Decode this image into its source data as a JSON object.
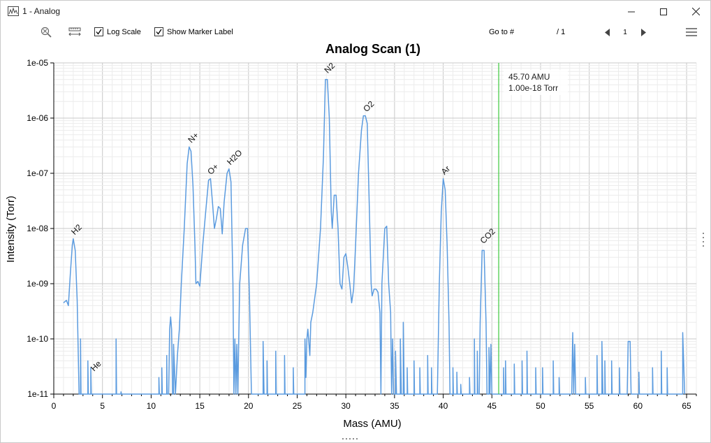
{
  "window": {
    "title": "1 - Analog"
  },
  "toolbar": {
    "zoom_icon": "zoom-reset-icon",
    "ruler_icon": "ruler-icon",
    "log_scale": {
      "label": "Log Scale",
      "checked": true
    },
    "show_marker": {
      "label": "Show Marker Label",
      "checked": true
    },
    "goto_label": "Go to #",
    "goto_value": "",
    "goto_total": "/ 1",
    "page_value": "1"
  },
  "chart_data": {
    "type": "line",
    "title": "Analog Scan (1)",
    "xlabel": "Mass (AMU)",
    "ylabel": "Intensity (Torr)",
    "xlim": [
      0,
      66
    ],
    "ylim": [
      1e-11,
      1e-05
    ],
    "yscale": "log",
    "grid": true,
    "x_ticks": [
      "0",
      "5",
      "10",
      "15",
      "20",
      "25",
      "30",
      "35",
      "40",
      "45",
      "50",
      "55",
      "60",
      "65"
    ],
    "y_ticks": [
      "1e-05",
      "1e-06",
      "1e-07",
      "1e-08",
      "1e-09",
      "1e-10",
      "1e-11"
    ],
    "line_color": "#5b9bdf",
    "marker_color": "#3cc83c",
    "series": [
      {
        "points": [
          [
            1.0,
            4.5e-10
          ],
          [
            1.3,
            5e-10
          ],
          [
            1.5,
            4e-10
          ],
          [
            1.7,
            1.5e-09
          ],
          [
            1.9,
            5e-09
          ],
          [
            2.0,
            6.5e-09
          ],
          [
            2.2,
            4e-09
          ],
          [
            2.4,
            5e-10
          ],
          [
            2.6,
            1e-11
          ],
          [
            2.75,
            1e-11
          ],
          [
            2.75,
            1e-10
          ],
          [
            2.8,
            1e-11
          ],
          [
            3.5,
            1e-11
          ],
          [
            3.5,
            4e-11
          ],
          [
            3.55,
            1e-11
          ],
          [
            3.8,
            1e-11
          ],
          [
            3.8,
            3e-11
          ],
          [
            3.85,
            1e-11
          ],
          [
            6.4,
            1e-11
          ],
          [
            6.4,
            1e-10
          ],
          [
            6.45,
            1e-11
          ],
          [
            6.9,
            1e-11
          ],
          [
            6.9,
            1.1e-11
          ],
          [
            6.95,
            1e-11
          ],
          [
            10.8,
            1e-11
          ],
          [
            10.8,
            2e-11
          ],
          [
            10.85,
            1e-11
          ],
          [
            11.1,
            1e-11
          ],
          [
            11.1,
            3e-11
          ],
          [
            11.15,
            1e-11
          ],
          [
            11.6,
            1e-11
          ],
          [
            11.6,
            5e-11
          ],
          [
            11.65,
            1e-11
          ],
          [
            11.8,
            1e-11
          ],
          [
            11.9,
            1.5e-10
          ],
          [
            12.0,
            2.5e-10
          ],
          [
            12.1,
            1.5e-10
          ],
          [
            12.2,
            1e-11
          ],
          [
            12.3,
            1e-11
          ],
          [
            12.3,
            8e-11
          ],
          [
            12.4,
            3e-11
          ],
          [
            12.5,
            1e-11
          ],
          [
            12.7,
            5e-11
          ],
          [
            12.9,
            1.5e-10
          ],
          [
            13.1,
            1e-09
          ],
          [
            13.4,
            1e-08
          ],
          [
            13.7,
            1.5e-07
          ],
          [
            13.9,
            3e-07
          ],
          [
            14.1,
            2.5e-07
          ],
          [
            14.3,
            6e-08
          ],
          [
            14.5,
            5e-09
          ],
          [
            14.6,
            1e-09
          ],
          [
            14.8,
            1.1e-09
          ],
          [
            15.0,
            9e-10
          ],
          [
            15.3,
            5e-09
          ],
          [
            15.6,
            2e-08
          ],
          [
            15.9,
            7.5e-08
          ],
          [
            16.1,
            8e-08
          ],
          [
            16.3,
            3e-08
          ],
          [
            16.5,
            1e-08
          ],
          [
            16.7,
            1.5e-08
          ],
          [
            16.9,
            2.5e-08
          ],
          [
            17.1,
            2.3e-08
          ],
          [
            17.3,
            8e-09
          ],
          [
            17.5,
            3e-08
          ],
          [
            17.8,
            1e-07
          ],
          [
            18.0,
            1.2e-07
          ],
          [
            18.2,
            7e-08
          ],
          [
            18.4,
            1e-09
          ],
          [
            18.5,
            1e-11
          ],
          [
            18.6,
            1e-10
          ],
          [
            18.7,
            1e-11
          ],
          [
            18.8,
            8e-11
          ],
          [
            18.9,
            1e-11
          ],
          [
            19.1,
            1e-09
          ],
          [
            19.4,
            5e-09
          ],
          [
            19.7,
            1e-08
          ],
          [
            19.9,
            1e-08
          ],
          [
            20.1,
            6e-10
          ],
          [
            20.3,
            1e-11
          ],
          [
            21.5,
            1e-11
          ],
          [
            21.5,
            9e-11
          ],
          [
            21.6,
            1e-11
          ],
          [
            21.9,
            1e-11
          ],
          [
            21.9,
            4e-11
          ],
          [
            21.95,
            1e-11
          ],
          [
            22.8,
            1e-11
          ],
          [
            22.8,
            6e-11
          ],
          [
            22.85,
            1e-11
          ],
          [
            23.7,
            1e-11
          ],
          [
            23.7,
            5e-11
          ],
          [
            23.75,
            1e-11
          ],
          [
            24.6,
            1e-11
          ],
          [
            24.6,
            3e-11
          ],
          [
            24.65,
            1e-11
          ],
          [
            25.8,
            1e-11
          ],
          [
            25.8,
            1e-10
          ],
          [
            25.9,
            2e-11
          ],
          [
            26.0,
            1e-10
          ],
          [
            26.1,
            1.5e-10
          ],
          [
            26.3,
            5e-11
          ],
          [
            26.4,
            2e-10
          ],
          [
            26.6,
            3e-10
          ],
          [
            27.0,
            1e-09
          ],
          [
            27.4,
            1e-08
          ],
          [
            27.7,
            2e-07
          ],
          [
            27.9,
            5e-06
          ],
          [
            28.1,
            5e-06
          ],
          [
            28.3,
            1e-06
          ],
          [
            28.5,
            2e-08
          ],
          [
            28.6,
            1e-08
          ],
          [
            28.8,
            4e-08
          ],
          [
            29.0,
            4e-08
          ],
          [
            29.2,
            1e-08
          ],
          [
            29.4,
            1e-09
          ],
          [
            29.6,
            8e-10
          ],
          [
            29.8,
            3e-09
          ],
          [
            30.0,
            3.5e-09
          ],
          [
            30.2,
            2e-09
          ],
          [
            30.4,
            1e-09
          ],
          [
            30.6,
            4.5e-10
          ],
          [
            30.8,
            8e-10
          ],
          [
            31.0,
            5e-09
          ],
          [
            31.3,
            1e-07
          ],
          [
            31.6,
            6e-07
          ],
          [
            31.8,
            1.1e-06
          ],
          [
            32.0,
            1.1e-06
          ],
          [
            32.2,
            8e-07
          ],
          [
            32.4,
            3e-08
          ],
          [
            32.6,
            1e-09
          ],
          [
            32.7,
            6e-10
          ],
          [
            32.9,
            8e-10
          ],
          [
            33.1,
            8e-10
          ],
          [
            33.3,
            7e-10
          ],
          [
            33.5,
            3e-10
          ],
          [
            33.6,
            1e-11
          ],
          [
            33.7,
            1e-09
          ],
          [
            34.0,
            1e-08
          ],
          [
            34.2,
            1.1e-08
          ],
          [
            34.4,
            1e-09
          ],
          [
            34.6,
            3e-10
          ],
          [
            34.7,
            1e-11
          ],
          [
            34.8,
            1e-10
          ],
          [
            34.9,
            1e-11
          ],
          [
            35.1,
            1e-11
          ],
          [
            35.1,
            6e-11
          ],
          [
            35.2,
            1e-11
          ],
          [
            35.6,
            1e-11
          ],
          [
            35.6,
            1e-10
          ],
          [
            35.7,
            1e-11
          ],
          [
            35.9,
            1e-11
          ],
          [
            35.9,
            2e-10
          ],
          [
            36.0,
            1e-11
          ],
          [
            36.3,
            1e-11
          ],
          [
            36.3,
            3e-11
          ],
          [
            36.35,
            1e-11
          ],
          [
            37.0,
            1e-11
          ],
          [
            37.0,
            4e-11
          ],
          [
            37.05,
            1e-11
          ],
          [
            37.6,
            1e-11
          ],
          [
            37.6,
            3e-11
          ],
          [
            37.65,
            1e-11
          ],
          [
            38.4,
            1e-11
          ],
          [
            38.4,
            5e-11
          ],
          [
            38.45,
            1e-11
          ],
          [
            38.8,
            1e-11
          ],
          [
            38.8,
            3e-11
          ],
          [
            38.85,
            1e-11
          ],
          [
            39.4,
            1e-11
          ],
          [
            39.6,
            1e-09
          ],
          [
            39.8,
            2e-08
          ],
          [
            40.0,
            8e-08
          ],
          [
            40.2,
            5e-08
          ],
          [
            40.4,
            5e-09
          ],
          [
            40.6,
            2e-10
          ],
          [
            40.7,
            1e-11
          ],
          [
            41.0,
            1e-11
          ],
          [
            41.0,
            3e-11
          ],
          [
            41.05,
            1e-11
          ],
          [
            41.4,
            1e-11
          ],
          [
            41.4,
            2.5e-11
          ],
          [
            41.45,
            1e-11
          ],
          [
            41.8,
            1e-11
          ],
          [
            41.8,
            1.5e-11
          ],
          [
            41.85,
            1e-11
          ],
          [
            42.7,
            1e-11
          ],
          [
            42.7,
            2e-11
          ],
          [
            42.75,
            1e-11
          ],
          [
            43.2,
            1e-11
          ],
          [
            43.2,
            1e-10
          ],
          [
            43.25,
            1e-11
          ],
          [
            43.5,
            1e-11
          ],
          [
            43.5,
            6e-11
          ],
          [
            43.55,
            1e-11
          ],
          [
            43.7,
            1e-11
          ],
          [
            43.8,
            2e-10
          ],
          [
            44.0,
            4e-09
          ],
          [
            44.2,
            4e-09
          ],
          [
            44.4,
            2e-10
          ],
          [
            44.5,
            1e-11
          ],
          [
            44.7,
            1e-11
          ],
          [
            44.7,
            7e-11
          ],
          [
            44.8,
            1e-11
          ],
          [
            44.9,
            8e-11
          ],
          [
            45.0,
            1e-11
          ],
          [
            46.2,
            1e-11
          ],
          [
            46.2,
            3e-11
          ],
          [
            46.25,
            1e-11
          ],
          [
            46.4,
            1e-11
          ],
          [
            46.4,
            4e-11
          ],
          [
            46.45,
            1e-11
          ],
          [
            47.3,
            1e-11
          ],
          [
            47.3,
            3.5e-11
          ],
          [
            47.35,
            1e-11
          ],
          [
            48.1,
            1e-11
          ],
          [
            48.1,
            4e-11
          ],
          [
            48.15,
            1e-11
          ],
          [
            48.6,
            1e-11
          ],
          [
            48.6,
            6e-11
          ],
          [
            48.65,
            1e-11
          ],
          [
            49.5,
            1e-11
          ],
          [
            49.5,
            3e-11
          ],
          [
            49.55,
            1e-11
          ],
          [
            50.2,
            1e-11
          ],
          [
            50.2,
            3e-11
          ],
          [
            50.25,
            1e-11
          ],
          [
            51.3,
            1e-11
          ],
          [
            51.3,
            4e-11
          ],
          [
            51.35,
            1e-11
          ],
          [
            51.9,
            1e-11
          ],
          [
            51.9,
            2e-11
          ],
          [
            51.95,
            1e-11
          ],
          [
            53.2,
            1e-11
          ],
          [
            53.3,
            1.3e-10
          ],
          [
            53.4,
            1e-11
          ],
          [
            53.5,
            8e-11
          ],
          [
            53.6,
            1e-11
          ],
          [
            54.6,
            1e-11
          ],
          [
            54.6,
            2e-11
          ],
          [
            54.65,
            1e-11
          ],
          [
            55.8,
            1e-11
          ],
          [
            55.8,
            5e-11
          ],
          [
            55.85,
            1e-11
          ],
          [
            56.3,
            1e-11
          ],
          [
            56.3,
            9e-11
          ],
          [
            56.4,
            1e-11
          ],
          [
            56.6,
            1e-11
          ],
          [
            56.6,
            4e-11
          ],
          [
            56.65,
            1e-11
          ],
          [
            57.3,
            1e-11
          ],
          [
            57.3,
            4e-11
          ],
          [
            57.35,
            1e-11
          ],
          [
            58.1,
            1e-11
          ],
          [
            58.1,
            3e-11
          ],
          [
            58.15,
            1e-11
          ],
          [
            58.9,
            1e-11
          ],
          [
            59.0,
            9e-11
          ],
          [
            59.2,
            9e-11
          ],
          [
            59.3,
            1e-11
          ],
          [
            60.1,
            1e-11
          ],
          [
            60.1,
            2.5e-11
          ],
          [
            60.15,
            1e-11
          ],
          [
            60.6,
            1e-11
          ],
          [
            60.6,
            1e-11
          ],
          [
            61.5,
            1e-11
          ],
          [
            61.5,
            3e-11
          ],
          [
            61.55,
            1e-11
          ],
          [
            62.4,
            1e-11
          ],
          [
            62.4,
            6e-11
          ],
          [
            62.45,
            1e-11
          ],
          [
            63.0,
            1e-11
          ],
          [
            63.0,
            3e-11
          ],
          [
            63.05,
            1e-11
          ],
          [
            64.6,
            1e-11
          ],
          [
            64.6,
            1.3e-10
          ],
          [
            64.8,
            1e-11
          ]
        ]
      }
    ],
    "annotations": [
      {
        "text": "H2",
        "x": 2.0,
        "y": 6.5e-09
      },
      {
        "text": "He",
        "x": 4.0,
        "y": 2.2e-11
      },
      {
        "text": "N+",
        "x": 14.0,
        "y": 3e-07
      },
      {
        "text": "O+",
        "x": 16.0,
        "y": 8e-08
      },
      {
        "text": "H2O",
        "x": 18.0,
        "y": 1.2e-07
      },
      {
        "text": "N2",
        "x": 28.0,
        "y": 5.5e-06
      },
      {
        "text": "O2",
        "x": 32.0,
        "y": 1.1e-06
      },
      {
        "text": "Ar",
        "x": 40.0,
        "y": 8e-08
      },
      {
        "text": "CO2",
        "x": 44.0,
        "y": 4.5e-09
      }
    ],
    "marker": {
      "x": 45.7,
      "amu_text": "45.70 AMU",
      "value_text": "1.00e-18 Torr"
    }
  }
}
